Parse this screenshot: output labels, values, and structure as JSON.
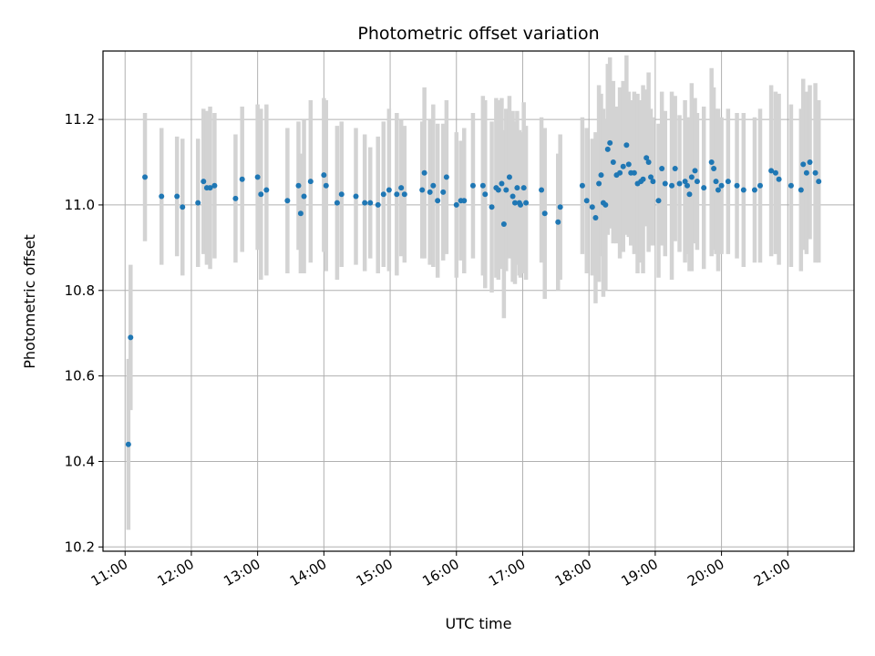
{
  "chart_data": {
    "type": "scatter",
    "title": "Photometric offset variation",
    "xlabel": "UTC time",
    "ylabel": "Photometric offset",
    "xlim": [
      "10:40",
      "22:00"
    ],
    "ylim": [
      10.19,
      11.36
    ],
    "x_ticks": [
      "11:00",
      "12:00",
      "13:00",
      "14:00",
      "15:00",
      "16:00",
      "17:00",
      "18:00",
      "19:00",
      "20:00",
      "21:00"
    ],
    "y_ticks": [
      10.2,
      10.4,
      10.6,
      10.8,
      11.0,
      11.2
    ],
    "y_tick_labels": [
      "10.2",
      "10.4",
      "10.6",
      "10.8",
      "11.0",
      "11.2"
    ],
    "grid": true,
    "colors": {
      "point": "#1f77b4",
      "errorbar": "#d3d3d3",
      "grid": "#b0b0b0"
    },
    "series": [
      {
        "x": [
          "11:03",
          "11:05",
          "11:18",
          "11:33",
          "11:47",
          "11:52",
          "12:06",
          "12:11",
          "12:14",
          "12:17",
          "12:21",
          "12:40",
          "12:46",
          "13:00",
          "13:03",
          "13:08",
          "13:27",
          "13:37",
          "13:39",
          "13:42",
          "13:48",
          "14:00",
          "14:02",
          "14:12",
          "14:16",
          "14:29",
          "14:37",
          "14:42",
          "14:49",
          "14:54",
          "14:59",
          "15:06",
          "15:10",
          "15:13",
          "15:29",
          "15:31",
          "15:36",
          "15:39",
          "15:43",
          "15:48",
          "15:51",
          "16:00",
          "16:04",
          "16:07",
          "16:15",
          "16:24",
          "16:26",
          "16:32",
          "16:36",
          "16:38",
          "16:41",
          "16:43",
          "16:45",
          "16:48",
          "16:51",
          "16:53",
          "16:55",
          "16:57",
          "16:58",
          "17:01",
          "17:03",
          "17:17",
          "17:20",
          "17:32",
          "17:34",
          "17:54",
          "17:58",
          "18:03",
          "18:06",
          "18:09",
          "18:11",
          "18:13",
          "18:15",
          "18:17",
          "18:19",
          "18:22",
          "18:25",
          "18:28",
          "18:31",
          "18:34",
          "18:36",
          "18:38",
          "18:41",
          "18:44",
          "18:47",
          "18:49",
          "18:52",
          "18:54",
          "18:56",
          "18:58",
          "19:03",
          "19:06",
          "19:09",
          "19:15",
          "19:18",
          "19:22",
          "19:27",
          "19:29",
          "19:31",
          "19:33",
          "19:36",
          "19:38",
          "19:44",
          "19:51",
          "19:53",
          "19:55",
          "19:57",
          "20:00",
          "20:06",
          "20:14",
          "20:20",
          "20:30",
          "20:35",
          "20:45",
          "20:49",
          "20:52",
          "21:03",
          "21:12",
          "21:14",
          "21:17",
          "21:20",
          "21:25",
          "21:28"
        ],
        "y": [
          10.44,
          10.69,
          11.065,
          11.02,
          11.02,
          10.995,
          11.005,
          11.055,
          11.04,
          11.04,
          11.045,
          11.015,
          11.06,
          11.065,
          11.025,
          11.035,
          11.01,
          11.045,
          10.98,
          11.02,
          11.055,
          11.07,
          11.045,
          11.005,
          11.025,
          11.02,
          11.005,
          11.005,
          11.0,
          11.025,
          11.035,
          11.025,
          11.04,
          11.025,
          11.035,
          11.075,
          11.03,
          11.045,
          11.01,
          11.03,
          11.065,
          11.0,
          11.01,
          11.01,
          11.045,
          11.045,
          11.025,
          10.995,
          11.04,
          11.035,
          11.05,
          10.955,
          11.035,
          11.065,
          11.02,
          11.005,
          11.04,
          11.005,
          11.0,
          11.04,
          11.005,
          11.035,
          10.98,
          10.96,
          10.995,
          11.045,
          11.01,
          10.995,
          10.97,
          11.05,
          11.07,
          11.005,
          11.0,
          11.13,
          11.145,
          11.1,
          11.07,
          11.075,
          11.09,
          11.14,
          11.095,
          11.075,
          11.075,
          11.05,
          11.055,
          11.06,
          11.11,
          11.1,
          11.065,
          11.055,
          11.01,
          11.085,
          11.05,
          11.045,
          11.085,
          11.05,
          11.055,
          11.045,
          11.025,
          11.065,
          11.08,
          11.055,
          11.04,
          11.1,
          11.085,
          11.055,
          11.035,
          11.045,
          11.055,
          11.045,
          11.035,
          11.035,
          11.045,
          11.08,
          11.075,
          11.06,
          11.045,
          11.035,
          11.095,
          11.075,
          11.1,
          11.075,
          11.055
        ],
        "err": [
          0.2,
          0.17,
          0.15,
          0.16,
          0.14,
          0.16,
          0.15,
          0.17,
          0.18,
          0.19,
          0.17,
          0.15,
          0.17,
          0.17,
          0.2,
          0.2,
          0.17,
          0.15,
          0.14,
          0.18,
          0.19,
          0.18,
          0.2,
          0.18,
          0.17,
          0.16,
          0.16,
          0.13,
          0.16,
          0.17,
          0.19,
          0.19,
          0.16,
          0.16,
          0.16,
          0.2,
          0.17,
          0.19,
          0.18,
          0.16,
          0.18,
          0.17,
          0.14,
          0.17,
          0.17,
          0.21,
          0.22,
          0.2,
          0.21,
          0.21,
          0.2,
          0.22,
          0.19,
          0.19,
          0.2,
          0.19,
          0.18,
          0.17,
          0.17,
          0.2,
          0.18,
          0.17,
          0.2,
          0.16,
          0.17,
          0.16,
          0.17,
          0.16,
          0.2,
          0.23,
          0.19,
          0.22,
          0.2,
          0.2,
          0.2,
          0.19,
          0.16,
          0.2,
          0.2,
          0.21,
          0.17,
          0.17,
          0.19,
          0.21,
          0.19,
          0.22,
          0.16,
          0.21,
          0.16,
          0.15,
          0.18,
          0.18,
          0.17,
          0.22,
          0.17,
          0.16,
          0.19,
          0.16,
          0.18,
          0.22,
          0.17,
          0.16,
          0.19,
          0.22,
          0.19,
          0.17,
          0.19,
          0.16,
          0.17,
          0.17,
          0.18,
          0.17,
          0.18,
          0.2,
          0.19,
          0.2,
          0.19,
          0.19,
          0.2,
          0.19,
          0.18,
          0.21,
          0.19
        ]
      }
    ]
  }
}
